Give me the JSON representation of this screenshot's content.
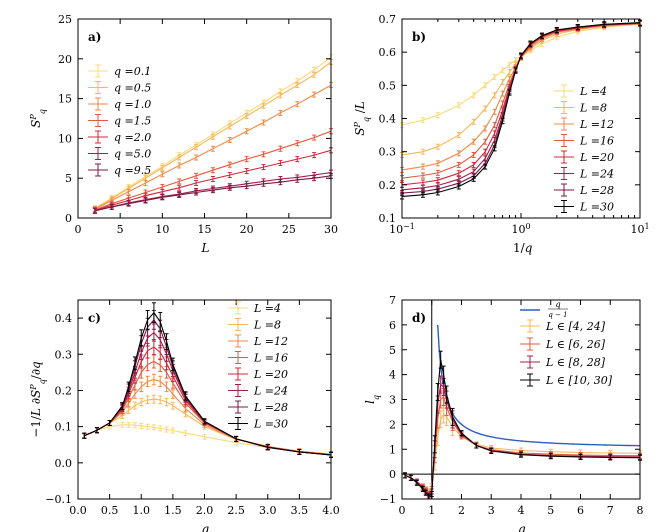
{
  "palette": [
    "#fbd97a",
    "#f6b75b",
    "#f08a45",
    "#e5593a",
    "#d0283b",
    "#a51c46",
    "#7a1a47",
    "#000000"
  ],
  "chart_data": [
    {
      "type": "line",
      "panel_label": "a)",
      "xlabel": "L",
      "ylabel": "S_q^P",
      "xscale": "linear",
      "xlim": [
        0,
        30
      ],
      "ylim": [
        0,
        25
      ],
      "xticks": [
        0,
        5,
        10,
        15,
        20,
        25,
        30
      ],
      "xtick_labels": [
        "0",
        "5",
        "10",
        "15",
        "20",
        "25",
        "30"
      ],
      "yticks": [
        0,
        5,
        10,
        15,
        20,
        25
      ],
      "ytick_labels": [
        "0",
        "5",
        "10",
        "15",
        "20",
        "25"
      ],
      "legend_position": "top-left",
      "series": [
        {
          "name": "q =0.1",
          "color_index": 0,
          "x": [
            2,
            4,
            6,
            8,
            10,
            12,
            14,
            16,
            18,
            20,
            22,
            24,
            26,
            28,
            30
          ],
          "y": [
            1.2,
            2.5,
            3.9,
            5.2,
            6.5,
            7.9,
            9.2,
            10.5,
            11.9,
            13.2,
            14.5,
            15.9,
            17.2,
            18.6,
            20.2
          ]
        },
        {
          "name": "q =0.5",
          "color_index": 1,
          "x": [
            2,
            4,
            6,
            8,
            10,
            12,
            14,
            16,
            18,
            20,
            22,
            24,
            26,
            28,
            30
          ],
          "y": [
            1.2,
            2.4,
            3.7,
            5.0,
            6.3,
            7.6,
            8.9,
            10.2,
            11.5,
            12.8,
            14.1,
            15.4,
            16.7,
            18.0,
            19.6
          ]
        },
        {
          "name": "q =1.0",
          "color_index": 2,
          "x": [
            2,
            4,
            6,
            8,
            10,
            12,
            14,
            16,
            18,
            20,
            22,
            24,
            26,
            28,
            30
          ],
          "y": [
            1.1,
            2.2,
            3.3,
            4.4,
            5.5,
            6.6,
            7.6,
            8.7,
            9.8,
            10.9,
            12.0,
            13.2,
            14.3,
            15.5,
            16.7
          ]
        },
        {
          "name": "q =1.5",
          "color_index": 3,
          "x": [
            2,
            4,
            6,
            8,
            10,
            12,
            14,
            16,
            18,
            20,
            22,
            24,
            26,
            28,
            30
          ],
          "y": [
            1.0,
            1.8,
            2.5,
            3.2,
            3.9,
            4.6,
            5.3,
            6.0,
            6.7,
            7.4,
            8.0,
            8.7,
            9.4,
            10.1,
            10.9
          ]
        },
        {
          "name": "q =2.0",
          "color_index": 4,
          "x": [
            2,
            4,
            6,
            8,
            10,
            12,
            14,
            16,
            18,
            20,
            22,
            24,
            26,
            28,
            30
          ],
          "y": [
            0.95,
            1.6,
            2.2,
            2.8,
            3.3,
            3.8,
            4.4,
            4.9,
            5.4,
            5.9,
            6.4,
            6.9,
            7.4,
            7.9,
            8.5
          ]
        },
        {
          "name": "q =5.0",
          "color_index": 5,
          "x": [
            2,
            4,
            6,
            8,
            10,
            12,
            14,
            16,
            18,
            20,
            22,
            24,
            26,
            28,
            30
          ],
          "y": [
            0.9,
            1.4,
            1.9,
            2.3,
            2.7,
            3.0,
            3.4,
            3.7,
            4.0,
            4.3,
            4.6,
            4.9,
            5.1,
            5.4,
            5.7
          ]
        },
        {
          "name": "q =9.5",
          "color_index": 6,
          "x": [
            2,
            4,
            6,
            8,
            10,
            12,
            14,
            16,
            18,
            20,
            22,
            24,
            26,
            28,
            30
          ],
          "y": [
            0.9,
            1.4,
            1.8,
            2.2,
            2.6,
            2.9,
            3.2,
            3.5,
            3.8,
            4.0,
            4.3,
            4.5,
            4.8,
            5.0,
            5.3
          ]
        }
      ]
    },
    {
      "type": "line",
      "panel_label": "b)",
      "xlabel": "1/q",
      "ylabel": "S_q^P / L",
      "xscale": "log",
      "xlim": [
        0.1,
        10
      ],
      "ylim": [
        0.1,
        0.7
      ],
      "xticks": [
        0.1,
        1,
        10
      ],
      "xtick_labels": [
        "10",
        "10",
        "10"
      ],
      "xtick_exponents": [
        "−1",
        "0",
        "1"
      ],
      "yticks": [
        0.1,
        0.2,
        0.3,
        0.4,
        0.5,
        0.6,
        0.7
      ],
      "ytick_labels": [
        "0.1",
        "0.2",
        "0.3",
        "0.4",
        "0.5",
        "0.6",
        "0.7"
      ],
      "legend_position": "right",
      "x": [
        0.1,
        0.15,
        0.2,
        0.3,
        0.4,
        0.5,
        0.6,
        0.7,
        0.8,
        0.9,
        1.0,
        1.2,
        1.5,
        2,
        3,
        5,
        10
      ],
      "series": [
        {
          "name": "L =4",
          "color_index": 0,
          "y": [
            0.38,
            0.395,
            0.41,
            0.44,
            0.47,
            0.5,
            0.525,
            0.545,
            0.562,
            0.576,
            0.588,
            0.605,
            0.625,
            0.645,
            0.663,
            0.675,
            0.684
          ]
        },
        {
          "name": "L =8",
          "color_index": 1,
          "y": [
            0.29,
            0.3,
            0.315,
            0.35,
            0.39,
            0.43,
            0.47,
            0.51,
            0.54,
            0.565,
            0.583,
            0.61,
            0.635,
            0.655,
            0.668,
            0.678,
            0.685
          ]
        },
        {
          "name": "L =12",
          "color_index": 2,
          "y": [
            0.245,
            0.255,
            0.265,
            0.295,
            0.33,
            0.37,
            0.42,
            0.475,
            0.52,
            0.555,
            0.585,
            0.615,
            0.64,
            0.66,
            0.67,
            0.68,
            0.686
          ]
        },
        {
          "name": "L =16",
          "color_index": 3,
          "y": [
            0.22,
            0.228,
            0.236,
            0.26,
            0.29,
            0.33,
            0.38,
            0.445,
            0.505,
            0.55,
            0.585,
            0.62,
            0.645,
            0.662,
            0.672,
            0.681,
            0.686
          ]
        },
        {
          "name": "L =20",
          "color_index": 4,
          "y": [
            0.2,
            0.207,
            0.214,
            0.235,
            0.26,
            0.3,
            0.355,
            0.425,
            0.495,
            0.548,
            0.587,
            0.622,
            0.647,
            0.664,
            0.673,
            0.682,
            0.687
          ]
        },
        {
          "name": "L =24",
          "color_index": 5,
          "y": [
            0.185,
            0.191,
            0.198,
            0.217,
            0.24,
            0.28,
            0.335,
            0.41,
            0.488,
            0.547,
            0.588,
            0.624,
            0.648,
            0.665,
            0.674,
            0.682,
            0.687
          ]
        },
        {
          "name": "L =28",
          "color_index": 6,
          "y": [
            0.175,
            0.18,
            0.187,
            0.205,
            0.227,
            0.265,
            0.32,
            0.4,
            0.482,
            0.545,
            0.589,
            0.625,
            0.649,
            0.666,
            0.675,
            0.683,
            0.688
          ]
        },
        {
          "name": "L =30",
          "color_index": 7,
          "y": [
            0.165,
            0.17,
            0.177,
            0.195,
            0.218,
            0.255,
            0.31,
            0.392,
            0.478,
            0.544,
            0.59,
            0.626,
            0.65,
            0.667,
            0.676,
            0.684,
            0.689
          ]
        }
      ]
    },
    {
      "type": "line",
      "panel_label": "c)",
      "xlabel": "q",
      "ylabel": "−(1/L) ∂S_q^P/∂q",
      "xscale": "linear",
      "xlim": [
        0,
        4
      ],
      "ylim": [
        -0.1,
        0.45
      ],
      "xticks": [
        0,
        0.5,
        1,
        1.5,
        2,
        2.5,
        3,
        3.5,
        4
      ],
      "xtick_labels": [
        "0.0",
        "0.5",
        "1.0",
        "1.5",
        "2.0",
        "2.5",
        "3.0",
        "3.5",
        "4.0"
      ],
      "yticks": [
        -0.1,
        0,
        0.1,
        0.2,
        0.3,
        0.4
      ],
      "ytick_labels": [
        "−0.1",
        "0.0",
        "0.1",
        "0.2",
        "0.3",
        "0.4"
      ],
      "legend_position": "top-right",
      "x": [
        0.1,
        0.3,
        0.5,
        0.7,
        0.8,
        0.9,
        1.0,
        1.1,
        1.2,
        1.3,
        1.4,
        1.5,
        1.7,
        2.0,
        2.5,
        3.0,
        3.5,
        4.0
      ],
      "series": [
        {
          "name": "L =4",
          "color_index": 0,
          "y": [
            0.075,
            0.09,
            0.1,
            0.105,
            0.105,
            0.104,
            0.102,
            0.1,
            0.098,
            0.095,
            0.092,
            0.089,
            0.082,
            0.072,
            0.056,
            0.042,
            0.032,
            0.025
          ]
        },
        {
          "name": "L =8",
          "color_index": 1,
          "y": [
            0.075,
            0.09,
            0.11,
            0.13,
            0.145,
            0.158,
            0.168,
            0.174,
            0.176,
            0.174,
            0.168,
            0.158,
            0.135,
            0.1,
            0.065,
            0.045,
            0.032,
            0.024
          ]
        },
        {
          "name": "L =12",
          "color_index": 2,
          "y": [
            0.075,
            0.09,
            0.11,
            0.14,
            0.165,
            0.19,
            0.21,
            0.225,
            0.23,
            0.225,
            0.21,
            0.19,
            0.15,
            0.105,
            0.065,
            0.045,
            0.031,
            0.023
          ]
        },
        {
          "name": "L =16",
          "color_index": 3,
          "y": [
            0.075,
            0.09,
            0.11,
            0.145,
            0.18,
            0.215,
            0.25,
            0.272,
            0.28,
            0.27,
            0.25,
            0.22,
            0.165,
            0.11,
            0.066,
            0.044,
            0.031,
            0.023
          ]
        },
        {
          "name": "L =20",
          "color_index": 4,
          "y": [
            0.075,
            0.09,
            0.11,
            0.15,
            0.19,
            0.235,
            0.28,
            0.31,
            0.32,
            0.305,
            0.275,
            0.24,
            0.172,
            0.112,
            0.066,
            0.044,
            0.03,
            0.022
          ]
        },
        {
          "name": "L =24",
          "color_index": 5,
          "y": [
            0.075,
            0.09,
            0.11,
            0.152,
            0.197,
            0.25,
            0.305,
            0.345,
            0.36,
            0.34,
            0.3,
            0.255,
            0.178,
            0.113,
            0.066,
            0.043,
            0.03,
            0.022
          ]
        },
        {
          "name": "L =28",
          "color_index": 6,
          "y": [
            0.075,
            0.09,
            0.11,
            0.155,
            0.205,
            0.265,
            0.33,
            0.375,
            0.395,
            0.37,
            0.32,
            0.265,
            0.182,
            0.114,
            0.066,
            0.043,
            0.03,
            0.022
          ]
        },
        {
          "name": "L =30",
          "color_index": 7,
          "y": [
            0.075,
            0.09,
            0.11,
            0.157,
            0.21,
            0.275,
            0.345,
            0.395,
            0.415,
            0.39,
            0.335,
            0.272,
            0.185,
            0.115,
            0.066,
            0.043,
            0.03,
            0.022
          ]
        }
      ]
    },
    {
      "type": "line",
      "panel_label": "d)",
      "xlabel": "q",
      "ylabel": "l_q",
      "xscale": "linear",
      "xlim": [
        0,
        8
      ],
      "ylim": [
        -1,
        7
      ],
      "xticks": [
        0,
        1,
        2,
        3,
        4,
        5,
        6,
        7,
        8
      ],
      "xtick_labels": [
        "0",
        "1",
        "2",
        "3",
        "4",
        "5",
        "6",
        "7",
        "8"
      ],
      "yticks": [
        -1,
        0,
        1,
        2,
        3,
        4,
        5,
        6,
        7
      ],
      "ytick_labels": [
        "−1",
        "0",
        "1",
        "2",
        "3",
        "4",
        "5",
        "6",
        "7"
      ],
      "reference_lines": {
        "hline_y": 0,
        "vline_x": 1
      },
      "legend_position": "top-right",
      "theory_curve": {
        "name_numerator": "q",
        "name_denominator": "q − 1",
        "color": "#2d5fc0",
        "formula": "q/(q-1)",
        "x_start": 1.2,
        "x_end": 8
      },
      "x": [
        0.1,
        0.3,
        0.5,
        0.7,
        0.8,
        0.9,
        1.0,
        1.1,
        1.2,
        1.3,
        1.4,
        1.5,
        1.7,
        2.0,
        2.5,
        3.0,
        4.0,
        5.0,
        6.0,
        7.0,
        8.0
      ],
      "series": [
        {
          "name": "L ∈ [4, 24]",
          "color_index": 1,
          "y": [
            -0.05,
            -0.15,
            -0.3,
            -0.5,
            -0.6,
            -0.7,
            -0.5,
            0.5,
            1.5,
            2.2,
            2.4,
            2.3,
            1.9,
            1.5,
            1.2,
            1.05,
            0.95,
            0.9,
            0.87,
            0.85,
            0.84
          ]
        },
        {
          "name": "L ∈ [6, 26]",
          "color_index": 3,
          "y": [
            -0.05,
            -0.15,
            -0.3,
            -0.5,
            -0.65,
            -0.8,
            -0.6,
            0.8,
            2.2,
            3.0,
            3.1,
            2.7,
            2.1,
            1.55,
            1.15,
            0.98,
            0.85,
            0.8,
            0.77,
            0.75,
            0.74
          ]
        },
        {
          "name": "L ∈ [8, 28]",
          "color_index": 5,
          "y": [
            -0.05,
            -0.15,
            -0.3,
            -0.55,
            -0.7,
            -0.85,
            -0.7,
            1.0,
            2.8,
            3.6,
            3.5,
            3.0,
            2.2,
            1.6,
            1.15,
            0.95,
            0.8,
            0.75,
            0.72,
            0.7,
            0.69
          ]
        },
        {
          "name": "L ∈ [10, 30]",
          "color_index": 7,
          "y": [
            -0.05,
            -0.15,
            -0.35,
            -0.6,
            -0.75,
            -0.9,
            -0.8,
            1.2,
            3.3,
            4.6,
            4.0,
            3.2,
            2.3,
            1.65,
            1.15,
            0.93,
            0.78,
            0.72,
            0.69,
            0.67,
            0.66
          ]
        }
      ]
    }
  ]
}
